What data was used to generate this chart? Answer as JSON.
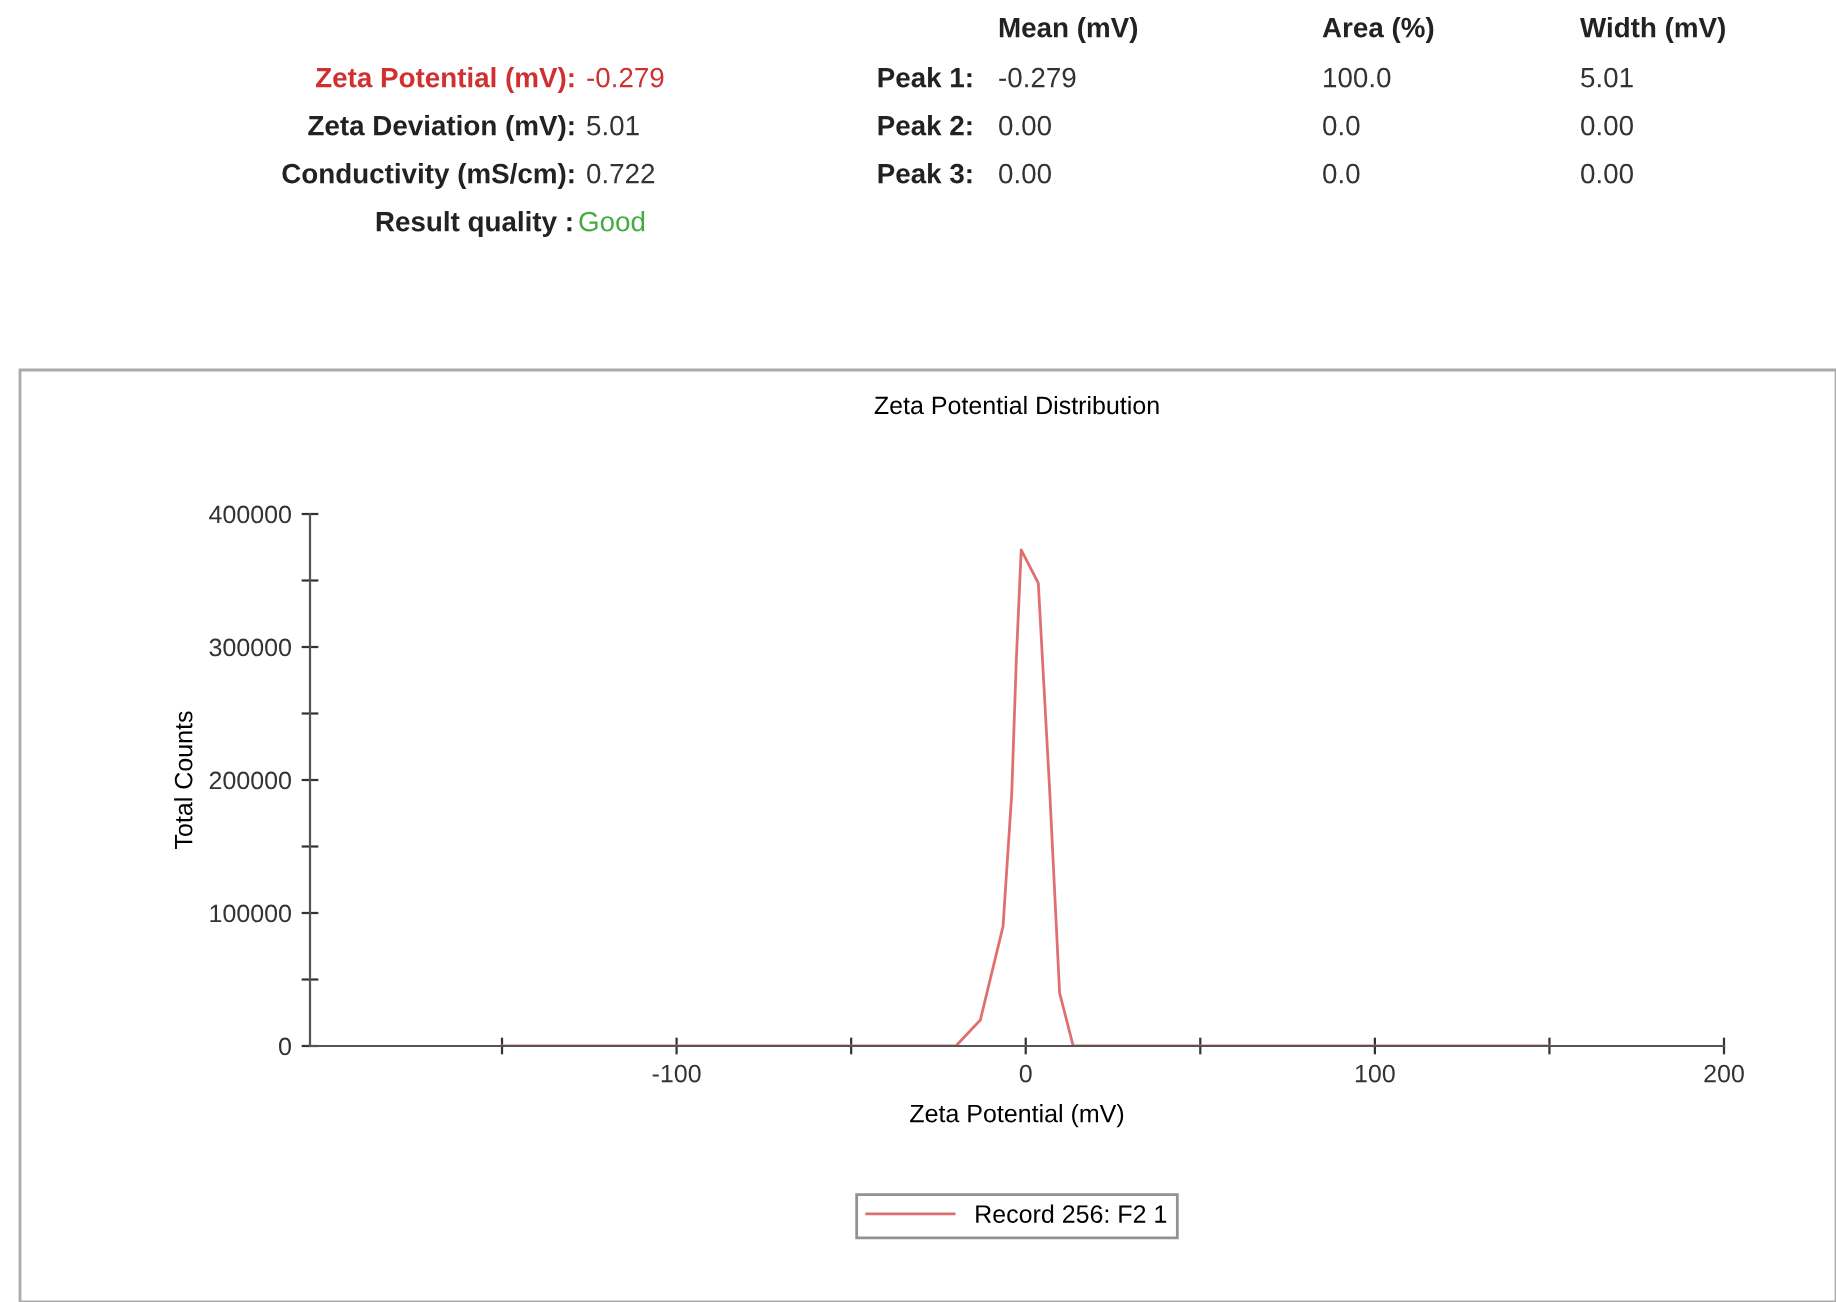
{
  "chart_data": [
    {
      "type": "other",
      "annotations": [
        "Zeta Potential (mV):",
        "-0.279",
        "Zeta Deviation (mV):",
        "5.01",
        "Conductivity (mS/cm):",
        "0.722",
        "Result quality :",
        "Good",
        "Mean (mV)",
        "Area (%)",
        "Width (mV)",
        "Peak 1:",
        "-0.279",
        "100.0",
        "5.01",
        "Peak 2:",
        "0.00",
        "0.0",
        "0.00",
        "Peak 3:",
        "0.00",
        "0.0",
        "0.00"
      ]
    },
    {
      "type": "line",
      "title": "Zeta Potential Distribution",
      "xlabel": "Zeta Potential (mV)",
      "ylabel": "Total Counts",
      "series": [
        {
          "name": "Record 256: F2 1",
          "color": "#e07070",
          "x": [
            -150,
            -20,
            -13,
            -6.5,
            -4,
            -2.7,
            -1.3,
            3.6,
            6.9,
            9.7,
            13.6,
            150
          ],
          "values": [
            0,
            0,
            19500,
            90000,
            190000,
            290000,
            373000,
            348000,
            190000,
            40000,
            0,
            0
          ]
        }
      ],
      "xlim": [
        -205,
        200
      ],
      "ylim": [
        0,
        400000
      ],
      "xticks": [
        {
          "value": -150,
          "label": null
        },
        -100,
        {
          "value": -50,
          "label": null
        },
        0,
        {
          "value": 50,
          "label": null
        },
        100,
        {
          "value": 150,
          "label": null
        },
        200
      ],
      "yticks": [
        0,
        {
          "value": 50000,
          "label": null
        },
        100000,
        {
          "value": 150000,
          "label": null
        },
        200000,
        {
          "value": 250000,
          "label": null
        },
        300000,
        {
          "value": 350000,
          "label": null
        },
        400000
      ],
      "grid": false,
      "legend": "bottom",
      "marker": "none",
      "line_style": "solid"
    }
  ]
}
